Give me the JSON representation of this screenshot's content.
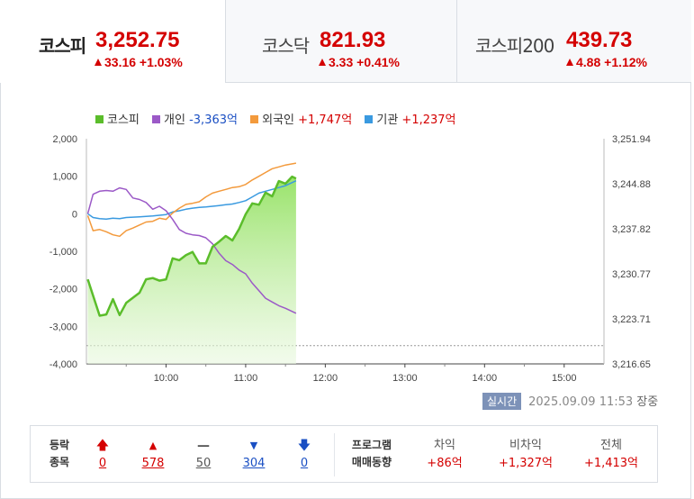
{
  "tabs": [
    {
      "name": "코스피",
      "value": "3,252.75",
      "change": "33.16 +1.03%",
      "active": true
    },
    {
      "name": "코스닥",
      "value": "821.93",
      "change": "3.33 +0.41%",
      "active": false
    },
    {
      "name": "코스피200",
      "value": "439.73",
      "change": "4.88 +1.12%",
      "active": false
    }
  ],
  "legend": [
    {
      "name": "코스피",
      "value": "",
      "color": "#5bbd2b"
    },
    {
      "name": "개인",
      "value": "-3,363억",
      "color": "#9b59c7"
    },
    {
      "name": "외국인",
      "value": "+1,747억",
      "color": "#f39a3c"
    },
    {
      "name": "기관",
      "value": "+1,237억",
      "color": "#3a9ae0"
    }
  ],
  "status": {
    "badge": "실시간",
    "datetime": "2025.09.09 11:53",
    "state": "장중"
  },
  "breadth": {
    "label_line1": "등락",
    "label_line2": "종목",
    "items": [
      {
        "icon": "limit-up",
        "count": "0",
        "color": "#d40000"
      },
      {
        "icon": "up",
        "count": "578",
        "color": "#d40000"
      },
      {
        "icon": "flat",
        "count": "50",
        "color": "#555555"
      },
      {
        "icon": "down",
        "count": "304",
        "color": "#1a4fc3"
      },
      {
        "icon": "limit-down",
        "count": "0",
        "color": "#1a4fc3"
      }
    ]
  },
  "program": {
    "label_line1": "프로그램",
    "label_line2": "매매동향",
    "items": [
      {
        "label": "차익",
        "value": "+86억"
      },
      {
        "label": "비차익",
        "value": "+1,327억"
      },
      {
        "label": "전체",
        "value": "+1,413억"
      }
    ]
  },
  "chart_data": {
    "type": "line",
    "x_ticks": [
      "10:00",
      "11:00",
      "12:00",
      "13:00",
      "14:00",
      "15:00"
    ],
    "y_left_ticks": [
      "2,000",
      "1,000",
      "0",
      "-1,000",
      "-2,000",
      "-3,000",
      "-4,000"
    ],
    "y_right_ticks": [
      "3,251.94",
      "3,244.88",
      "3,237.82",
      "3,230.77",
      "3,223.71",
      "3,216.65"
    ],
    "y_left_range": [
      -4000,
      2000
    ],
    "y_right_range": [
      3216.65,
      3251.94
    ],
    "x_range": [
      "09:00",
      "15:30"
    ],
    "reference_line_right": 3219.5,
    "series": [
      {
        "name": "코스피",
        "axis": "right",
        "color": "#5bbd2b",
        "area": true,
        "x": [
          "09:01",
          "09:10",
          "09:15",
          "09:20",
          "09:25",
          "09:30",
          "09:40",
          "09:45",
          "09:50",
          "09:55",
          "10:00",
          "10:05",
          "10:10",
          "10:15",
          "10:20",
          "10:25",
          "10:30",
          "10:35",
          "10:40",
          "10:45",
          "10:50",
          "10:55",
          "11:00",
          "11:05",
          "11:10",
          "11:15",
          "11:20",
          "11:25",
          "11:30",
          "11:35",
          "11:38"
        ],
        "values": [
          3229.9,
          3224.2,
          3224.4,
          3226.8,
          3224.3,
          3226.2,
          3227.8,
          3229.9,
          3230.1,
          3229.7,
          3229.9,
          3233.2,
          3232.9,
          3233.7,
          3234.2,
          3232.4,
          3232.4,
          3235.0,
          3235.8,
          3236.7,
          3236.0,
          3237.8,
          3240.1,
          3241.8,
          3241.6,
          3243.5,
          3242.9,
          3245.3,
          3244.9,
          3246.0,
          3245.7
        ]
      },
      {
        "name": "개인",
        "axis": "left",
        "color": "#9b59c7",
        "x": [
          "09:01",
          "09:05",
          "09:10",
          "09:15",
          "09:20",
          "09:25",
          "09:30",
          "09:35",
          "09:40",
          "09:45",
          "09:50",
          "09:55",
          "10:00",
          "10:05",
          "10:10",
          "10:15",
          "10:20",
          "10:25",
          "10:30",
          "10:35",
          "10:40",
          "10:45",
          "10:50",
          "10:55",
          "11:00",
          "11:05",
          "11:10",
          "11:15",
          "11:20",
          "11:25",
          "11:30",
          "11:38"
        ],
        "values": [
          0,
          520,
          600,
          620,
          600,
          690,
          650,
          420,
          380,
          300,
          120,
          200,
          80,
          -150,
          -420,
          -520,
          -560,
          -580,
          -640,
          -800,
          -1050,
          -1250,
          -1350,
          -1500,
          -1600,
          -1850,
          -2050,
          -2250,
          -2350,
          -2450,
          -2520,
          -2650
        ]
      },
      {
        "name": "외국인",
        "axis": "left",
        "color": "#f39a3c",
        "x": [
          "09:01",
          "09:05",
          "09:10",
          "09:15",
          "09:20",
          "09:25",
          "09:30",
          "09:35",
          "09:40",
          "09:45",
          "09:50",
          "09:55",
          "10:00",
          "10:05",
          "10:10",
          "10:15",
          "10:20",
          "10:25",
          "10:30",
          "10:35",
          "10:40",
          "10:45",
          "10:50",
          "10:55",
          "11:00",
          "11:05",
          "11:10",
          "11:15",
          "11:20",
          "11:25",
          "11:30",
          "11:38"
        ],
        "values": [
          -50,
          -450,
          -420,
          -480,
          -560,
          -600,
          -450,
          -380,
          -300,
          -220,
          -200,
          -120,
          -150,
          20,
          150,
          250,
          280,
          320,
          450,
          550,
          600,
          650,
          700,
          720,
          780,
          900,
          1000,
          1100,
          1200,
          1250,
          1300,
          1350
        ]
      },
      {
        "name": "기관",
        "axis": "left",
        "color": "#3a9ae0",
        "x": [
          "09:01",
          "09:05",
          "09:10",
          "09:15",
          "09:20",
          "09:25",
          "09:30",
          "09:35",
          "09:40",
          "09:45",
          "09:50",
          "09:55",
          "10:00",
          "10:05",
          "10:10",
          "10:15",
          "10:20",
          "10:25",
          "10:30",
          "10:35",
          "10:40",
          "10:45",
          "10:50",
          "10:55",
          "11:00",
          "11:05",
          "11:10",
          "11:15",
          "11:20",
          "11:25",
          "11:30",
          "11:38"
        ],
        "values": [
          0,
          -100,
          -130,
          -140,
          -120,
          -130,
          -100,
          -90,
          -80,
          -70,
          -60,
          -40,
          -20,
          50,
          80,
          120,
          150,
          170,
          180,
          200,
          220,
          240,
          260,
          300,
          350,
          450,
          550,
          600,
          650,
          700,
          750,
          880
        ]
      }
    ]
  }
}
